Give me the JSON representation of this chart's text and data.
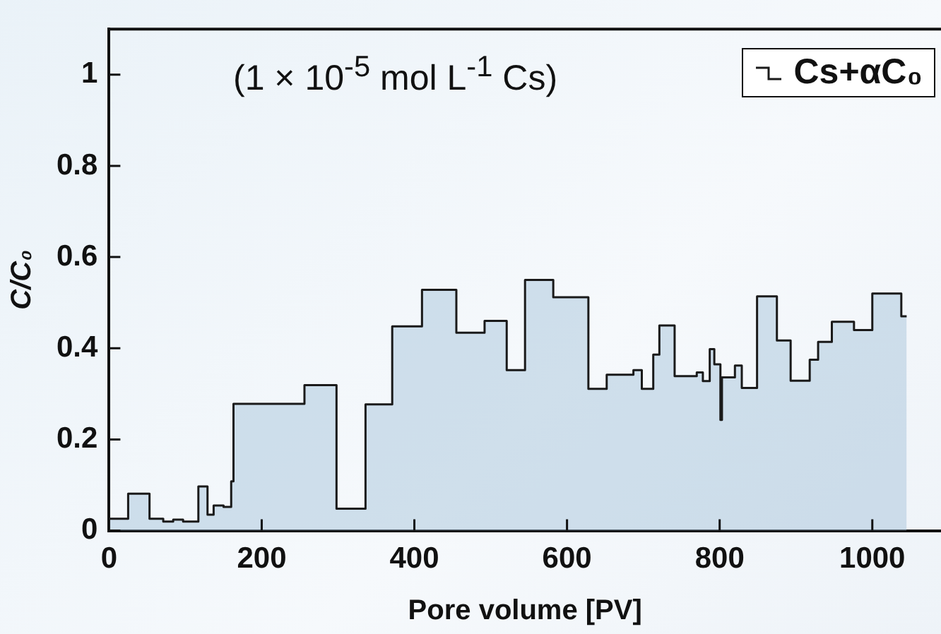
{
  "chart_data": {
    "type": "area",
    "xlabel": "Pore volume [PV]",
    "ylabel": "C/C₀",
    "annotations": [
      "(1 × 10$^{-5}$ mol L$^{-1}$ Cs)"
    ],
    "xlim": [
      0,
      1090
    ],
    "xticks": [
      0,
      200,
      400,
      600,
      800,
      1000
    ],
    "ylim": [
      0,
      1.1
    ],
    "yticks": [
      0,
      0.2,
      0.4,
      0.6,
      0.8,
      1
    ],
    "legend": "top right",
    "grid": false,
    "marker": "none",
    "series": [
      {
        "name": "Cs+αC₀",
        "color": "#1a1a1a",
        "x": [
          0,
          25,
          25,
          53,
          53,
          71,
          71,
          84,
          84,
          97,
          97,
          117,
          117,
          129,
          129,
          137,
          137,
          150,
          150,
          160,
          160,
          163,
          163,
          256,
          256,
          298,
          298,
          336,
          336,
          371,
          371,
          410,
          410,
          455,
          455,
          492,
          492,
          521,
          521,
          545,
          545,
          582,
          582,
          628,
          628,
          652,
          652,
          687,
          687,
          698,
          698,
          713,
          713,
          721,
          721,
          741,
          741,
          770,
          770,
          778,
          778,
          787,
          787,
          793,
          793,
          801,
          801,
          803,
          803,
          820,
          820,
          829,
          829,
          849,
          849,
          875,
          875,
          893,
          893,
          918,
          918,
          929,
          929,
          947,
          947,
          976,
          976,
          1000,
          1000,
          1038,
          1038,
          1045
        ],
        "values": [
          0.026,
          0.026,
          0.081,
          0.081,
          0.026,
          0.026,
          0.02,
          0.02,
          0.024,
          0.024,
          0.02,
          0.02,
          0.097,
          0.097,
          0.035,
          0.035,
          0.055,
          0.055,
          0.052,
          0.052,
          0.108,
          0.108,
          0.278,
          0.278,
          0.319,
          0.319,
          0.048,
          0.048,
          0.277,
          0.277,
          0.448,
          0.448,
          0.528,
          0.528,
          0.434,
          0.434,
          0.46,
          0.46,
          0.352,
          0.352,
          0.55,
          0.55,
          0.512,
          0.512,
          0.311,
          0.311,
          0.342,
          0.342,
          0.352,
          0.352,
          0.311,
          0.311,
          0.386,
          0.386,
          0.45,
          0.45,
          0.339,
          0.339,
          0.347,
          0.347,
          0.328,
          0.328,
          0.398,
          0.398,
          0.365,
          0.365,
          0.243,
          0.243,
          0.336,
          0.336,
          0.362,
          0.362,
          0.313,
          0.313,
          0.514,
          0.514,
          0.417,
          0.417,
          0.329,
          0.329,
          0.375,
          0.375,
          0.414,
          0.414,
          0.458,
          0.458,
          0.44,
          0.44,
          0.52,
          0.52,
          0.47,
          0.47
        ]
      }
    ]
  }
}
